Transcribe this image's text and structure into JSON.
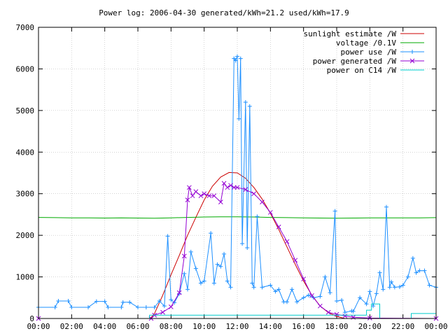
{
  "chart_data": {
    "type": "line",
    "title": "Power log: 2006-04-30 generated/kWh=21.2 used/kWh=17.9",
    "xlabel": "",
    "ylabel": "",
    "x_unit": "hours",
    "xlim": [
      0,
      24
    ],
    "ylim": [
      0,
      7000
    ],
    "x_ticks": [
      0,
      2,
      4,
      6,
      8,
      10,
      12,
      14,
      16,
      18,
      20,
      22,
      24
    ],
    "x_tick_labels": [
      "00:00",
      "02:00",
      "04:00",
      "06:00",
      "08:00",
      "10:00",
      "12:00",
      "14:00",
      "16:00",
      "18:00",
      "20:00",
      "22:00",
      "00:00"
    ],
    "y_ticks": [
      0,
      1000,
      2000,
      3000,
      4000,
      5000,
      6000,
      7000
    ],
    "y_tick_labels": [
      "0",
      "1000",
      "2000",
      "3000",
      "4000",
      "5000",
      "6000",
      "7000"
    ],
    "grid": true,
    "legend_position": "top-right",
    "series": [
      {
        "name": "sunlight estimate /W",
        "color": "#cc0000",
        "marker": "none",
        "x": [
          0,
          6.75,
          7.0,
          7.5,
          8.0,
          8.5,
          9.0,
          9.5,
          10.0,
          10.5,
          11.0,
          11.5,
          12.0,
          12.5,
          13.0,
          13.5,
          14.0,
          14.5,
          15.0,
          15.5,
          16.0,
          16.5,
          17.0,
          17.5,
          18.0,
          18.5,
          24
        ],
        "y": [
          0,
          0,
          120,
          560,
          1050,
          1520,
          2000,
          2430,
          2850,
          3180,
          3400,
          3510,
          3500,
          3370,
          3150,
          2870,
          2530,
          2140,
          1720,
          1300,
          900,
          560,
          300,
          140,
          50,
          0,
          0
        ]
      },
      {
        "name": "voltage /0.1V",
        "color": "#00aa00",
        "marker": "none",
        "x": [
          0,
          1,
          2,
          3,
          4,
          5,
          6,
          7,
          8,
          9,
          10,
          11,
          12,
          13,
          14,
          15,
          16,
          17,
          18,
          19,
          20,
          21,
          22,
          23,
          24
        ],
        "y": [
          2430,
          2425,
          2420,
          2420,
          2415,
          2420,
          2415,
          2410,
          2420,
          2430,
          2440,
          2445,
          2445,
          2440,
          2430,
          2425,
          2420,
          2415,
          2410,
          2415,
          2420,
          2420,
          2420,
          2420,
          2425
        ]
      },
      {
        "name": "power use /W",
        "color": "#1e90ff",
        "marker": "plus",
        "x": [
          0,
          1.0,
          1.2,
          1.8,
          2.0,
          3.0,
          3.5,
          4.0,
          4.2,
          5.0,
          5.1,
          5.5,
          6.0,
          6.5,
          7.0,
          7.3,
          7.6,
          7.8,
          8.0,
          8.2,
          8.5,
          8.8,
          9.0,
          9.2,
          9.5,
          9.8,
          10.0,
          10.4,
          10.6,
          10.8,
          11.0,
          11.2,
          11.4,
          11.6,
          11.8,
          11.9,
          12.0,
          12.1,
          12.2,
          12.3,
          12.5,
          12.6,
          12.75,
          12.9,
          13.0,
          13.2,
          13.5,
          14.0,
          14.3,
          14.5,
          14.8,
          15.0,
          15.3,
          15.6,
          16.0,
          16.3,
          16.6,
          17.0,
          17.3,
          17.6,
          17.9,
          18.0,
          18.3,
          18.5,
          18.9,
          19.0,
          19.4,
          19.8,
          20.0,
          20.2,
          20.4,
          20.6,
          20.8,
          21.0,
          21.2,
          21.3,
          21.5,
          21.8,
          22.0,
          22.3,
          22.6,
          22.8,
          23.0,
          23.3,
          23.6,
          24.0
        ],
        "y": [
          270,
          270,
          420,
          420,
          270,
          270,
          410,
          410,
          270,
          270,
          390,
          390,
          270,
          270,
          270,
          420,
          300,
          1980,
          450,
          380,
          600,
          1080,
          700,
          1600,
          1200,
          850,
          900,
          2050,
          850,
          1300,
          1250,
          1550,
          900,
          750,
          6250,
          6200,
          6300,
          4800,
          6250,
          1800,
          5200,
          1700,
          5100,
          850,
          750,
          2450,
          750,
          800,
          650,
          700,
          400,
          400,
          700,
          400,
          500,
          560,
          500,
          530,
          1000,
          620,
          2580,
          420,
          440,
          150,
          180,
          170,
          500,
          350,
          650,
          300,
          600,
          1100,
          700,
          2680,
          750,
          880,
          750,
          760,
          800,
          1000,
          1450,
          1100,
          1150,
          1150,
          800,
          750
        ]
      },
      {
        "name": "power generated /W",
        "color": "#9400d3",
        "marker": "x",
        "x": [
          0,
          6.8,
          7.0,
          7.5,
          8.0,
          8.5,
          8.8,
          9.0,
          9.1,
          9.3,
          9.5,
          9.8,
          10.0,
          10.3,
          10.6,
          11.0,
          11.2,
          11.4,
          11.6,
          11.8,
          12.0,
          12.5,
          13.0,
          13.5,
          14.0,
          14.5,
          15.0,
          15.5,
          16.0,
          16.5,
          17.0,
          17.5,
          18.0,
          18.5,
          19.0,
          20.0,
          24
        ],
        "y": [
          0,
          0,
          80,
          150,
          280,
          620,
          1500,
          2850,
          3150,
          2950,
          3050,
          2950,
          3000,
          2950,
          2950,
          2800,
          3250,
          3150,
          3200,
          3150,
          3150,
          3100,
          3000,
          2800,
          2550,
          2200,
          1850,
          1400,
          950,
          550,
          300,
          150,
          100,
          60,
          30,
          10,
          0
        ]
      },
      {
        "name": "power on C14 /W",
        "color": "#00cccc",
        "marker": "none",
        "x": [
          0,
          6.7,
          6.7,
          19.8,
          19.8,
          20.1,
          20.1,
          20.6,
          20.6,
          22.5,
          22.5,
          24
        ],
        "y": [
          0,
          0,
          80,
          80,
          200,
          200,
          350,
          350,
          0,
          0,
          120,
          120
        ]
      }
    ]
  }
}
